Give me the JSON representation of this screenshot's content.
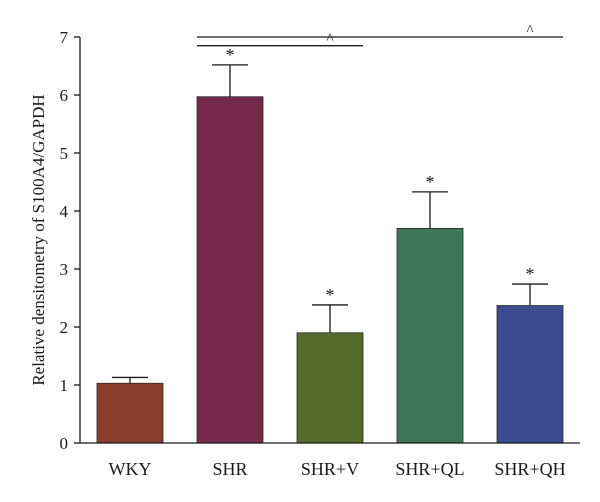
{
  "chart_data": {
    "type": "bar",
    "ylabel": "Relative densitometry of S100A4/GAPDH",
    "ylim": [
      0,
      7
    ],
    "yticks": [
      0,
      1,
      2,
      3,
      4,
      5,
      6,
      7
    ],
    "categories": [
      "WKY",
      "SHR",
      "SHR+V",
      "SHR+QL",
      "SHR+QH"
    ],
    "values": [
      1.03,
      5.97,
      1.9,
      3.7,
      2.37
    ],
    "errors": [
      0.1,
      0.55,
      0.48,
      0.63,
      0.37
    ],
    "colors": [
      "#8b3e2a",
      "#75294a",
      "#566a2a",
      "#3e7757",
      "#3b4c8e"
    ],
    "significance": [
      "",
      "*",
      "*",
      "*",
      "*"
    ],
    "comparisons": [
      {
        "from": "SHR",
        "to": "SHR+V",
        "marker": "^"
      },
      {
        "from": "SHR",
        "to": "SHR+QH",
        "marker": "^"
      }
    ],
    "grid": false
  }
}
